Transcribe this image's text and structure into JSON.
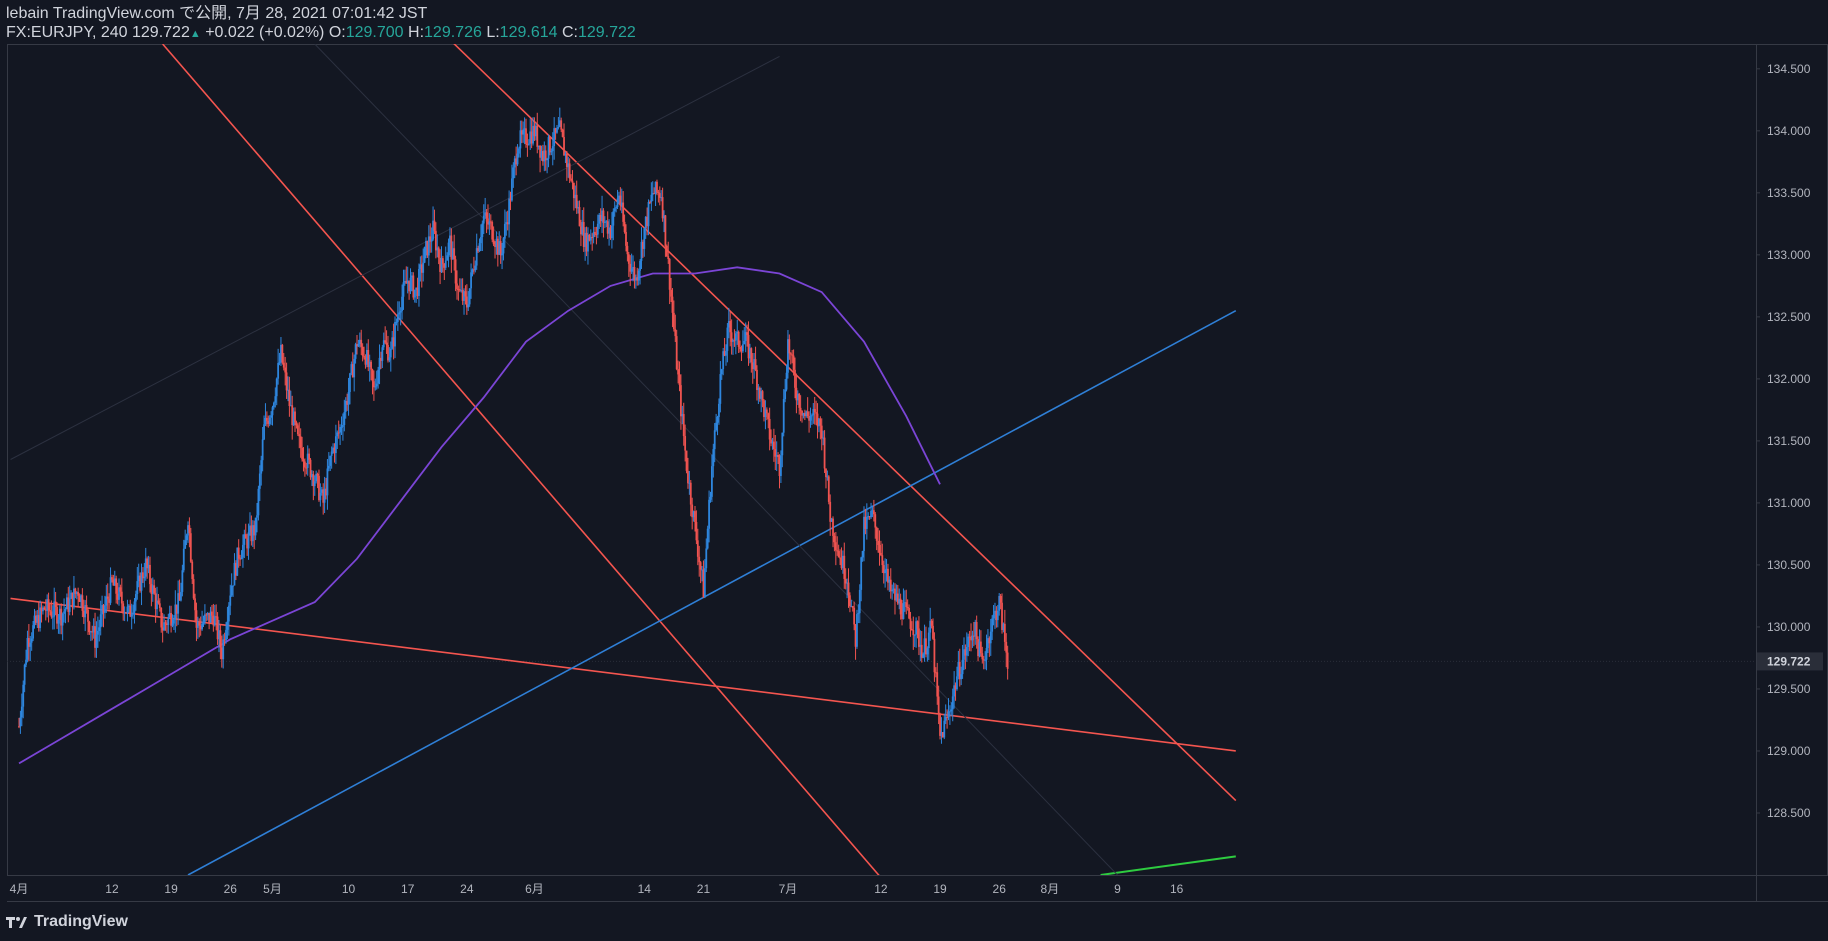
{
  "header": {
    "line1": "lebain TradingView.com で公開, 7月 28, 2021 07:01:42 JST",
    "symbol": "FX:EURJPY, 240",
    "last": "129.722",
    "up_arrow": "▲",
    "change": "+0.022 (+0.02%)",
    "o_label": "O:",
    "o": "129.700",
    "h_label": "H:",
    "h": "129.726",
    "l_label": "L:",
    "l": "129.614",
    "c_label": "C:",
    "c": "129.722"
  },
  "footer": {
    "brand": "TradingView",
    "logo_icon": "tradingview-logo-icon"
  },
  "colors": {
    "background": "#131722",
    "up": "#2e86de",
    "down": "#ef5350",
    "trendline_red": "#f4554f",
    "trendline_blue": "#2f7fd6",
    "ma": "#7b45d6",
    "green": "#2ecc40",
    "axis_text": "#b2b5be",
    "grid": "#2a2e39"
  },
  "chart_data": {
    "type": "candlestick",
    "ylim": [
      128.0,
      134.7
    ],
    "y_ticks": [
      "128.500",
      "129.000",
      "129.500",
      "130.000",
      "130.500",
      "131.000",
      "131.500",
      "132.000",
      "132.500",
      "133.000",
      "133.500",
      "134.000",
      "134.500"
    ],
    "x_ticks": [
      {
        "label": "4月",
        "day": 0
      },
      {
        "label": "12",
        "day": 11
      },
      {
        "label": "19",
        "day": 18
      },
      {
        "label": "26",
        "day": 25
      },
      {
        "label": "5月",
        "day": 30
      },
      {
        "label": "10",
        "day": 39
      },
      {
        "label": "17",
        "day": 46
      },
      {
        "label": "24",
        "day": 53
      },
      {
        "label": "6月",
        "day": 61
      },
      {
        "label": "14",
        "day": 74
      },
      {
        "label": "21",
        "day": 81
      },
      {
        "label": "7月",
        "day": 91
      },
      {
        "label": "12",
        "day": 102
      },
      {
        "label": "19",
        "day": 109
      },
      {
        "label": "26",
        "day": 116
      },
      {
        "label": "8月",
        "day": 122
      },
      {
        "label": "9",
        "day": 130
      },
      {
        "label": "16",
        "day": 137
      }
    ],
    "last_price": "129.722",
    "close_path": [
      [
        0,
        129.2
      ],
      [
        1,
        129.9
      ],
      [
        3,
        130.15
      ],
      [
        5,
        130.1
      ],
      [
        7,
        130.3
      ],
      [
        9,
        129.9
      ],
      [
        11,
        130.35
      ],
      [
        13,
        130.1
      ],
      [
        15,
        130.5
      ],
      [
        17,
        130.0
      ],
      [
        19,
        130.2
      ],
      [
        20,
        130.9
      ],
      [
        21,
        130.0
      ],
      [
        23,
        130.1
      ],
      [
        24,
        129.8
      ],
      [
        25,
        130.3
      ],
      [
        26,
        130.6
      ],
      [
        28,
        130.8
      ],
      [
        29,
        131.6
      ],
      [
        30,
        131.8
      ],
      [
        31,
        132.2
      ],
      [
        32,
        131.8
      ],
      [
        33,
        131.5
      ],
      [
        35,
        131.2
      ],
      [
        36,
        131.0
      ],
      [
        37,
        131.4
      ],
      [
        38,
        131.6
      ],
      [
        39,
        131.9
      ],
      [
        40,
        132.3
      ],
      [
        41,
        132.2
      ],
      [
        42,
        131.9
      ],
      [
        43,
        132.3
      ],
      [
        44,
        132.2
      ],
      [
        45,
        132.6
      ],
      [
        46,
        132.8
      ],
      [
        47,
        132.7
      ],
      [
        48,
        133.0
      ],
      [
        49,
        133.2
      ],
      [
        50,
        132.9
      ],
      [
        51,
        133.1
      ],
      [
        52,
        132.7
      ],
      [
        53,
        132.6
      ],
      [
        54,
        133.0
      ],
      [
        55,
        133.3
      ],
      [
        56,
        133.2
      ],
      [
        57,
        133.0
      ],
      [
        58,
        133.4
      ],
      [
        59,
        133.9
      ],
      [
        60,
        133.95
      ],
      [
        61,
        134.0
      ],
      [
        62,
        133.8
      ],
      [
        63,
        133.9
      ],
      [
        64,
        134.0
      ],
      [
        65,
        133.7
      ],
      [
        66,
        133.4
      ],
      [
        67,
        133.1
      ],
      [
        68,
        133.2
      ],
      [
        69,
        133.3
      ],
      [
        70,
        133.2
      ],
      [
        71,
        133.5
      ],
      [
        72,
        133.0
      ],
      [
        73,
        132.8
      ],
      [
        74,
        133.2
      ],
      [
        75,
        133.5
      ],
      [
        76,
        133.5
      ],
      [
        77,
        132.8
      ],
      [
        78,
        132.0
      ],
      [
        79,
        131.3
      ],
      [
        80,
        130.8
      ],
      [
        81,
        130.3
      ],
      [
        82,
        131.3
      ],
      [
        83,
        132.0
      ],
      [
        84,
        132.4
      ],
      [
        85,
        132.3
      ],
      [
        86,
        132.3
      ],
      [
        87,
        132.1
      ],
      [
        88,
        131.8
      ],
      [
        89,
        131.5
      ],
      [
        90,
        131.3
      ],
      [
        91,
        132.3
      ],
      [
        92,
        131.9
      ],
      [
        93,
        131.7
      ],
      [
        94,
        131.7
      ],
      [
        95,
        131.6
      ],
      [
        96,
        130.9
      ],
      [
        97,
        130.6
      ],
      [
        98,
        130.4
      ],
      [
        99,
        129.9
      ],
      [
        100,
        130.8
      ],
      [
        101,
        130.9
      ],
      [
        102,
        130.6
      ],
      [
        103,
        130.3
      ],
      [
        104,
        130.2
      ],
      [
        105,
        130.1
      ],
      [
        106,
        130.0
      ],
      [
        107,
        129.8
      ],
      [
        108,
        130.0
      ],
      [
        109,
        129.1
      ],
      [
        110,
        129.3
      ],
      [
        111,
        129.6
      ],
      [
        112,
        129.8
      ],
      [
        113,
        130.0
      ],
      [
        114,
        129.7
      ],
      [
        115,
        130.0
      ],
      [
        116,
        130.2
      ],
      [
        117,
        129.72
      ]
    ],
    "ma_path": [
      [
        0,
        128.9
      ],
      [
        5,
        129.1
      ],
      [
        10,
        129.3
      ],
      [
        15,
        129.5
      ],
      [
        20,
        129.7
      ],
      [
        25,
        129.9
      ],
      [
        30,
        130.05
      ],
      [
        35,
        130.2
      ],
      [
        40,
        130.55
      ],
      [
        45,
        131.0
      ],
      [
        50,
        131.45
      ],
      [
        55,
        131.85
      ],
      [
        60,
        132.3
      ],
      [
        65,
        132.55
      ],
      [
        70,
        132.75
      ],
      [
        75,
        132.85
      ],
      [
        80,
        132.85
      ],
      [
        85,
        132.9
      ],
      [
        90,
        132.85
      ],
      [
        95,
        132.7
      ],
      [
        100,
        132.3
      ],
      [
        105,
        131.7
      ],
      [
        109,
        131.15
      ]
    ],
    "trendlines": [
      {
        "name": "red-horizontal-support",
        "color": "red",
        "p1": [
          -1,
          130.23
        ],
        "p2": [
          144,
          129.0
        ]
      },
      {
        "name": "red-upper-channel",
        "color": "red",
        "p1": [
          50,
          134.8
        ],
        "p2": [
          144,
          128.6
        ]
      },
      {
        "name": "red-lower-channel",
        "color": "red",
        "p1": [
          17,
          134.7
        ],
        "p2": [
          103,
          127.9
        ]
      },
      {
        "name": "blue-uptrend",
        "color": "blue",
        "p1": [
          20,
          128.0
        ],
        "p2": [
          144,
          132.55
        ]
      },
      {
        "name": "green-line",
        "color": "green",
        "p1": [
          128,
          128.0
        ],
        "p2": [
          144,
          128.15
        ]
      },
      {
        "name": "faint-diagonal-up",
        "color": "grid",
        "p1": [
          -1,
          131.35
        ],
        "p2": [
          90,
          134.6
        ]
      },
      {
        "name": "faint-diagonal-down",
        "color": "grid",
        "p1": [
          35,
          134.7
        ],
        "p2": [
          130,
          128.0
        ]
      }
    ]
  }
}
